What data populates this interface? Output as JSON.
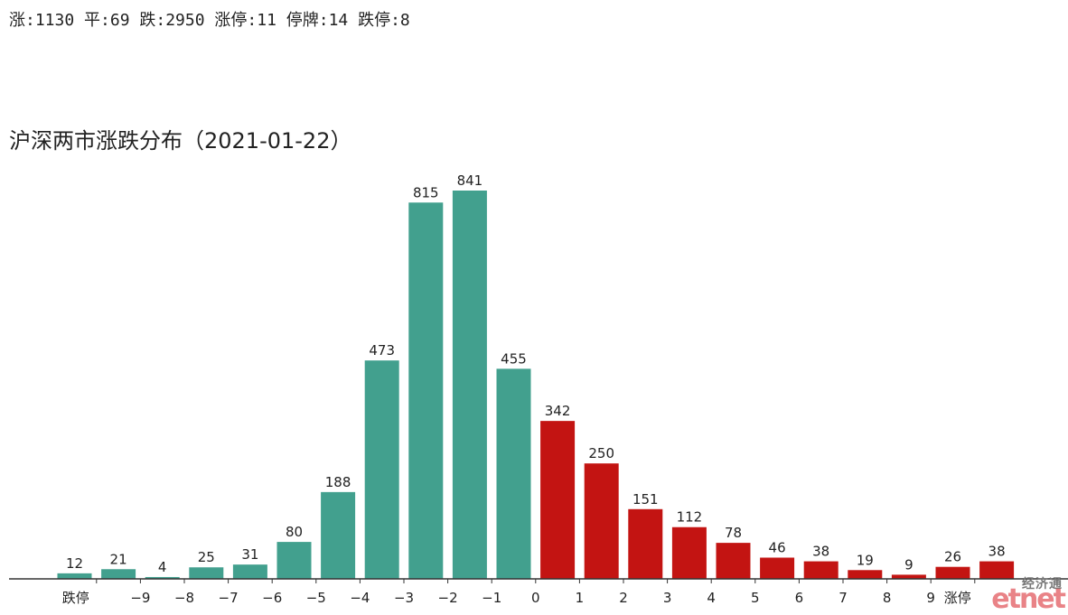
{
  "summary_text": "涨:1130 平:69 跌:2950 涨停:11 停牌:14 跌停:8",
  "watermark": {
    "cn": "经济通",
    "en": "etnet"
  },
  "colors": {
    "down": "#42a08e",
    "up": "#c31412",
    "axis": "#333333"
  },
  "chart_data": {
    "type": "bar",
    "title": "沪深两市涨跌分布（2021-01-22）",
    "xlabel": "",
    "ylabel": "",
    "ylim": [
      0,
      841
    ],
    "grid": false,
    "bars": [
      {
        "value": 12,
        "color_key": "down"
      },
      {
        "value": 21,
        "color_key": "down"
      },
      {
        "value": 4,
        "color_key": "down"
      },
      {
        "value": 25,
        "color_key": "down"
      },
      {
        "value": 31,
        "color_key": "down"
      },
      {
        "value": 80,
        "color_key": "down"
      },
      {
        "value": 188,
        "color_key": "down"
      },
      {
        "value": 473,
        "color_key": "down"
      },
      {
        "value": 815,
        "color_key": "down"
      },
      {
        "value": 841,
        "color_key": "down"
      },
      {
        "value": 455,
        "color_key": "down"
      },
      {
        "value": 342,
        "color_key": "up"
      },
      {
        "value": 250,
        "color_key": "up"
      },
      {
        "value": 151,
        "color_key": "up"
      },
      {
        "value": 112,
        "color_key": "up"
      },
      {
        "value": 78,
        "color_key": "up"
      },
      {
        "value": 46,
        "color_key": "up"
      },
      {
        "value": 38,
        "color_key": "up"
      },
      {
        "value": 19,
        "color_key": "up"
      },
      {
        "value": 9,
        "color_key": "up"
      },
      {
        "value": 26,
        "color_key": "up"
      },
      {
        "value": 38,
        "color_key": "up"
      }
    ],
    "tick_labels": [
      "跌停",
      "−9",
      "−8",
      "−7",
      "−6",
      "−5",
      "−4",
      "−3",
      "−2",
      "−1",
      "0",
      "1",
      "2",
      "3",
      "4",
      "5",
      "6",
      "7",
      "8",
      "9",
      "涨停"
    ]
  }
}
